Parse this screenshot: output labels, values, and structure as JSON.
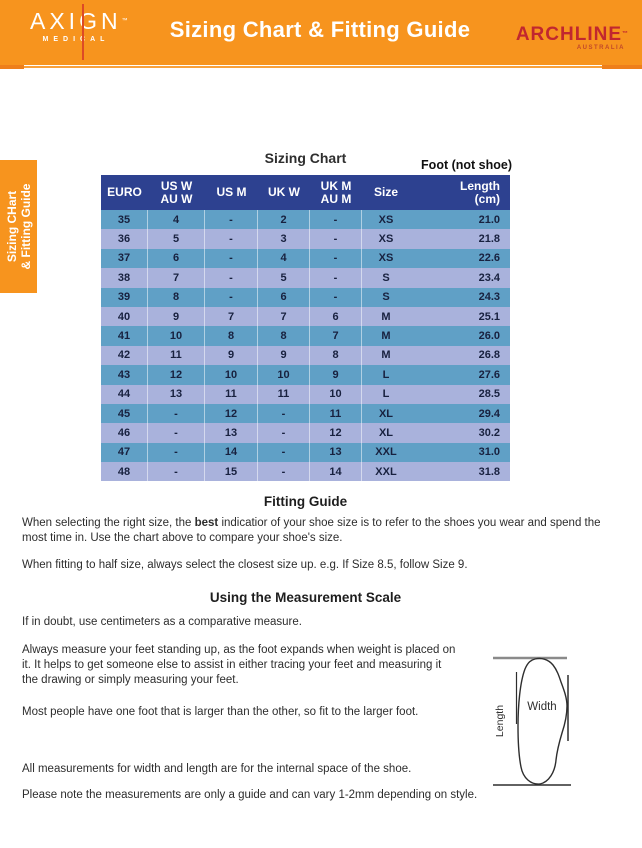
{
  "header": {
    "title": "Sizing Chart & Fitting Guide",
    "bg_color": "#F7941E",
    "axign": {
      "name": "AXIGN",
      "tm": "™",
      "subtitle": "MEDICAL"
    },
    "archline": {
      "name": "ARCHLINE",
      "tm": "™",
      "subtitle": "AUSTRALIA",
      "color": "#C1272F"
    }
  },
  "side_tab": {
    "line1": "Sizing CHart",
    "line2": "& Fitting Guide",
    "bg_color": "#F7941E"
  },
  "sizing_chart": {
    "title": "Sizing Chart",
    "foot_note": "Foot (not shoe)",
    "header_bg": "#2D4190",
    "row_color_a": "#60A0C6",
    "row_color_b": "#A9B2DC",
    "columns": [
      {
        "l1": "EURO",
        "l2": ""
      },
      {
        "l1": "US W",
        "l2": "AU W"
      },
      {
        "l1": "US M",
        "l2": ""
      },
      {
        "l1": "UK W",
        "l2": ""
      },
      {
        "l1": "UK M",
        "l2": "AU M"
      },
      {
        "l1": "Size",
        "l2": ""
      },
      {
        "l1": "Length",
        "l2": "(cm)"
      }
    ],
    "rows": [
      [
        "35",
        "4",
        "-",
        "2",
        "-",
        "XS",
        "21.0"
      ],
      [
        "36",
        "5",
        "-",
        "3",
        "-",
        "XS",
        "21.8"
      ],
      [
        "37",
        "6",
        "-",
        "4",
        "-",
        "XS",
        "22.6"
      ],
      [
        "38",
        "7",
        "-",
        "5",
        "-",
        "S",
        "23.4"
      ],
      [
        "39",
        "8",
        "-",
        "6",
        "-",
        "S",
        "24.3"
      ],
      [
        "40",
        "9",
        "7",
        "7",
        "6",
        "M",
        "25.1"
      ],
      [
        "41",
        "10",
        "8",
        "8",
        "7",
        "M",
        "26.0"
      ],
      [
        "42",
        "11",
        "9",
        "9",
        "8",
        "M",
        "26.8"
      ],
      [
        "43",
        "12",
        "10",
        "10",
        "9",
        "L",
        "27.6"
      ],
      [
        "44",
        "13",
        "11",
        "11",
        "10",
        "L",
        "28.5"
      ],
      [
        "45",
        "-",
        "12",
        "-",
        "11",
        "XL",
        "29.4"
      ],
      [
        "46",
        "-",
        "13",
        "-",
        "12",
        "XL",
        "30.2"
      ],
      [
        "47",
        "-",
        "14",
        "-",
        "13",
        "XXL",
        "31.0"
      ],
      [
        "48",
        "-",
        "15",
        "-",
        "14",
        "XXL",
        "31.8"
      ]
    ]
  },
  "fitting_guide": {
    "title": "Fitting Guide",
    "p1_pre": "When selecting the right size, the ",
    "p1_bold": "best",
    "p1_post": " indicatior of your shoe size is to refer to the shoes you wear and spend the most time in. Use the chart above to compare your shoe's size.",
    "p2": "When fitting to half size, always select the closest size up. e.g. If Size 8.5, follow Size 9."
  },
  "measurement": {
    "title": "Using the Measurement Scale",
    "p1": "If in doubt, use centimeters as a comparative measure.",
    "p2": "Always measure your feet standing up, as the foot expands when weight is placed on it. It helps to get someone else to assist in either tracing your feet and measuring it the drawing or simply measuring your feet.",
    "p3": "Most people have one foot that is larger than the other, so fit to the larger foot.",
    "p4": "All measurements for width and length are for the internal space of the shoe.",
    "p5": "Please note the measurements are only a guide and can vary 1-2mm depending on style."
  },
  "diagram": {
    "width_label": "Width",
    "length_label": "Length"
  }
}
